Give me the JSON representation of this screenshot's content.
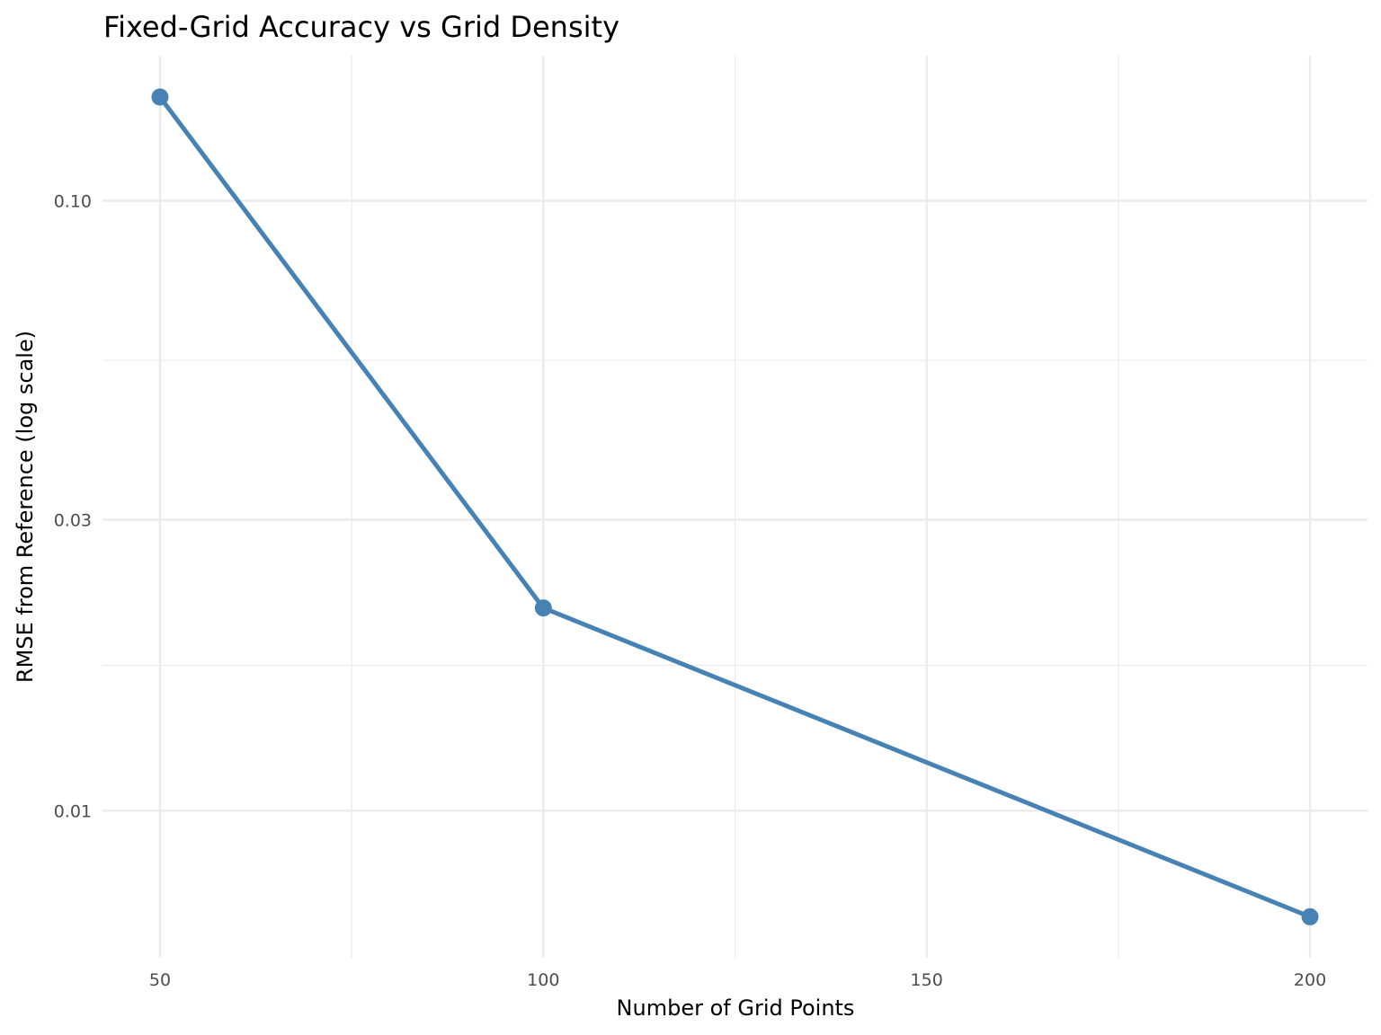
{
  "chart_data": {
    "type": "line",
    "title": "Fixed-Grid Accuracy vs Grid Density",
    "xlabel": "Number of Grid Points",
    "ylabel": "RMSE from Reference (log scale)",
    "x": [
      50,
      100,
      200
    ],
    "y": [
      0.148,
      0.0215,
      0.0067
    ],
    "xlim": [
      42.5,
      207.5
    ],
    "ylim": [
      0.00574,
      0.173
    ],
    "yscale": "log10",
    "xticks": [
      50,
      100,
      150,
      200
    ],
    "xtick_labels": [
      "50",
      "100",
      "150",
      "200"
    ],
    "yticks": [
      0.01,
      0.03,
      0.1
    ],
    "ytick_labels": [
      "0.01",
      "0.03",
      "0.10"
    ],
    "grid": true,
    "color": "#4682B4",
    "markers": true
  }
}
